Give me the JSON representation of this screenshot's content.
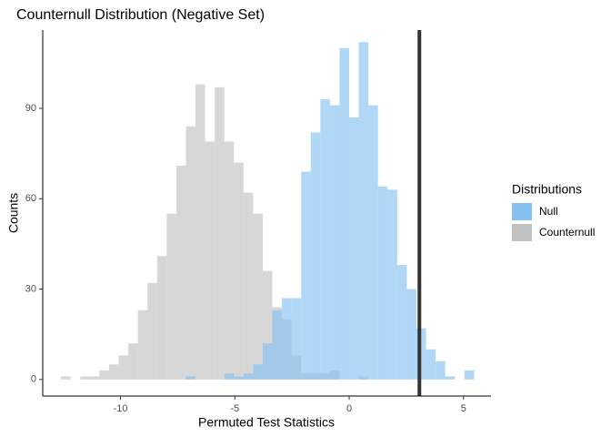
{
  "chart_data": {
    "type": "histogram",
    "title": "Counternull Distribution (Negative Set)",
    "x_label": "Permuted Test Statistics",
    "y_label": "Counts",
    "legend_title": "Distributions",
    "bins": [
      -12.6,
      -12.18,
      -11.76,
      -11.34,
      -10.92,
      -10.5,
      -10.08,
      -9.66,
      -9.24,
      -8.82,
      -8.4,
      -7.98,
      -7.56,
      -7.14,
      -6.72,
      -6.3,
      -5.88,
      -5.46,
      -5.04,
      -4.62,
      -4.2,
      -3.78,
      -3.36,
      -2.94,
      -2.52,
      -2.1,
      -1.68,
      -1.26,
      -0.84,
      -0.42,
      0,
      0.42,
      0.84,
      1.26,
      1.68,
      2.1,
      2.52,
      2.94,
      3.36,
      3.78,
      4.2,
      4.62,
      5.04,
      5.46
    ],
    "series": [
      {
        "name": "Null",
        "color": "#85c1f0",
        "values": [
          0,
          0,
          0,
          0,
          0,
          0,
          0,
          0,
          0,
          0,
          0,
          0,
          0,
          1,
          0,
          0,
          0,
          2,
          1,
          2,
          5,
          12,
          23,
          27,
          27,
          69,
          82,
          93,
          91,
          110,
          87,
          112,
          91,
          64,
          63,
          38,
          30,
          17,
          10,
          6,
          1,
          0,
          3
        ]
      },
      {
        "name": "Counternull",
        "color": "#c2c2c2",
        "values": [
          1,
          0,
          1,
          1,
          3,
          5,
          8,
          12,
          23,
          32,
          41,
          55,
          71,
          84,
          98,
          79,
          97,
          79,
          72,
          62,
          55,
          36,
          24,
          20,
          8,
          2,
          2,
          2,
          3,
          0,
          0,
          1,
          0,
          0,
          0,
          0,
          0,
          0,
          0,
          0,
          0,
          0,
          0
        ]
      }
    ],
    "vline": 3.07,
    "xlim": [
      -13.4,
      6.2
    ],
    "ylim": [
      -5.5,
      116
    ],
    "xticks": [
      -10,
      -5,
      0,
      5
    ],
    "yticks": [
      0,
      30,
      60,
      90
    ]
  }
}
